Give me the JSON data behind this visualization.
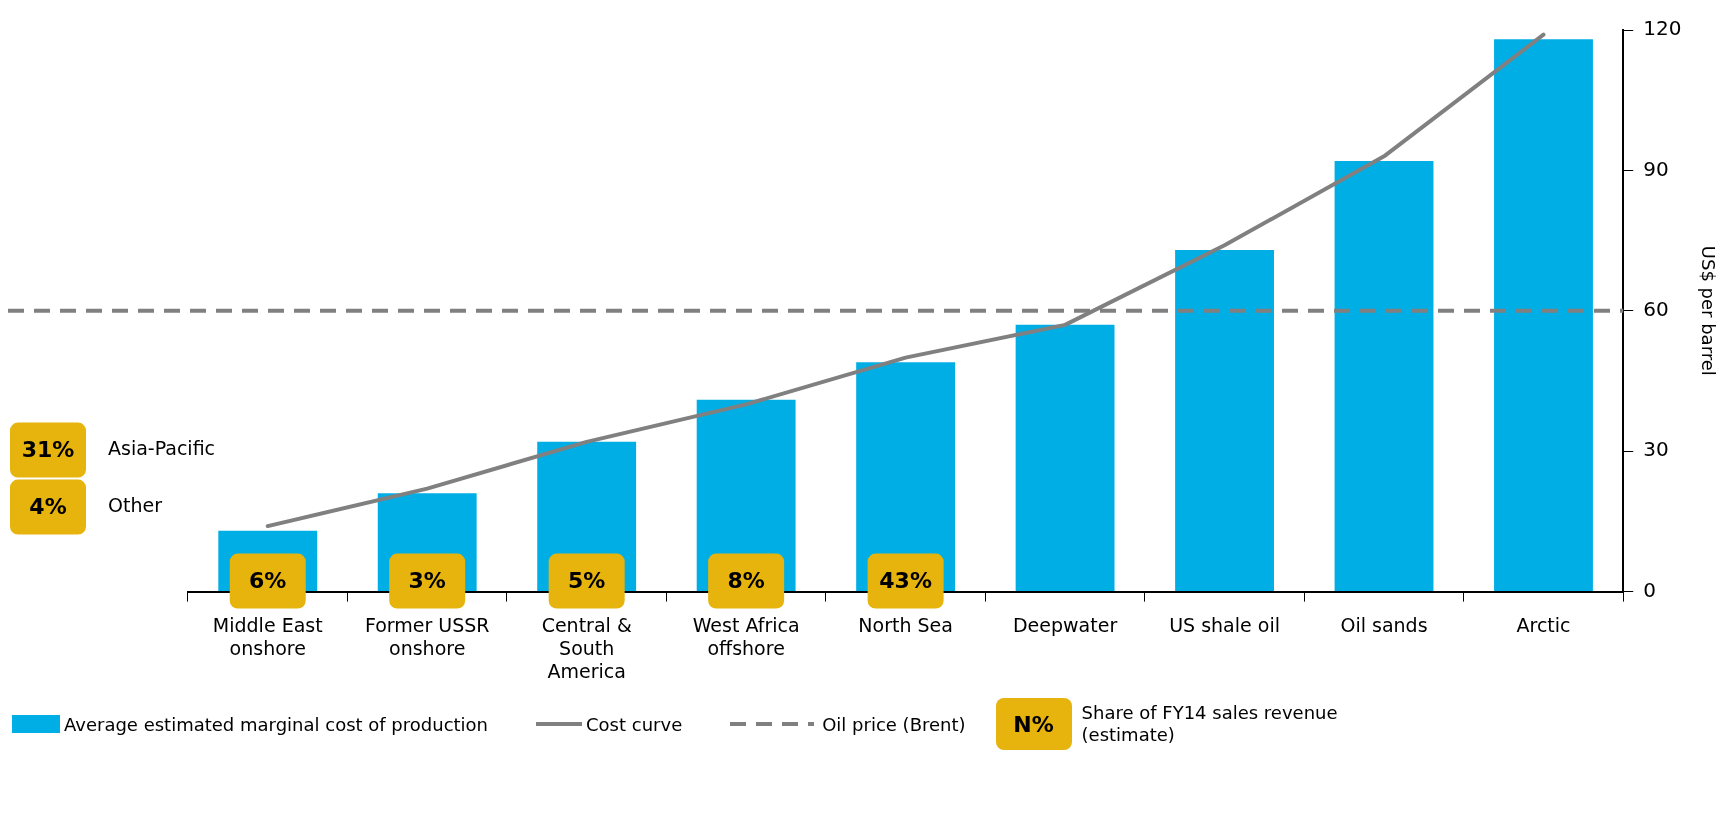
{
  "chart_data": {
    "type": "bar",
    "ylabel": "US$ per barrel",
    "categories": [
      "Middle East onshore",
      "Former USSR onshore",
      "Central & South America",
      "West Africa offshore",
      "North Sea",
      "Deepwater",
      "US shale oil",
      "Oil sands",
      "Arctic"
    ],
    "series": [
      {
        "name": "Average estimated marginal cost of production",
        "color": "#00aee6",
        "values": [
          13,
          21,
          32,
          41,
          49,
          57,
          73,
          92,
          118
        ]
      },
      {
        "type": "line",
        "name": "Cost curve",
        "color": "#808080",
        "values": [
          14,
          22,
          32,
          40,
          50,
          57,
          74,
          93,
          119
        ]
      }
    ],
    "ylim": [
      0,
      120
    ],
    "yticks": [
      0,
      30,
      60,
      90,
      120
    ],
    "grid": false,
    "legend": "bottom",
    "marker": "none",
    "ref_lines": [
      {
        "axis": "y",
        "value": 60,
        "label": "Oil price (Brent)",
        "color": "#808080",
        "line_style": "dashed"
      }
    ],
    "annotations": [
      "6%",
      "3%",
      "5%",
      "8%",
      "43%",
      "31%",
      "Asia-Pacific",
      "4%",
      "Other",
      "N%",
      "Share of FY14 sales revenue (estimate)"
    ]
  }
}
